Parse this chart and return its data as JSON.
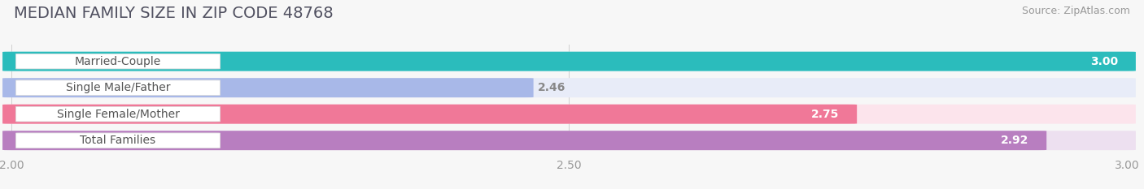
{
  "title": "MEDIAN FAMILY SIZE IN ZIP CODE 48768",
  "source": "Source: ZipAtlas.com",
  "categories": [
    "Married-Couple",
    "Single Male/Father",
    "Single Female/Mother",
    "Total Families"
  ],
  "values": [
    3.0,
    2.46,
    2.75,
    2.92
  ],
  "bar_colors": [
    "#2bbcbc",
    "#a8b8e8",
    "#f07898",
    "#b87ec0"
  ],
  "bar_bg_colors": [
    "#e8f8f8",
    "#e8ecf8",
    "#fce4ec",
    "#ede0f0"
  ],
  "label_values": [
    "3.00",
    "2.46",
    "2.75",
    "2.92"
  ],
  "value_in_bar": [
    true,
    false,
    true,
    true
  ],
  "xmin": 2.0,
  "xmax": 3.0,
  "xticks": [
    2.0,
    2.5,
    3.0
  ],
  "xtick_labels": [
    "2.00",
    "2.50",
    "3.00"
  ],
  "background_color": "#f7f7f7",
  "bar_height": 0.72,
  "title_fontsize": 14,
  "label_fontsize": 10,
  "value_fontsize": 10,
  "source_fontsize": 9
}
